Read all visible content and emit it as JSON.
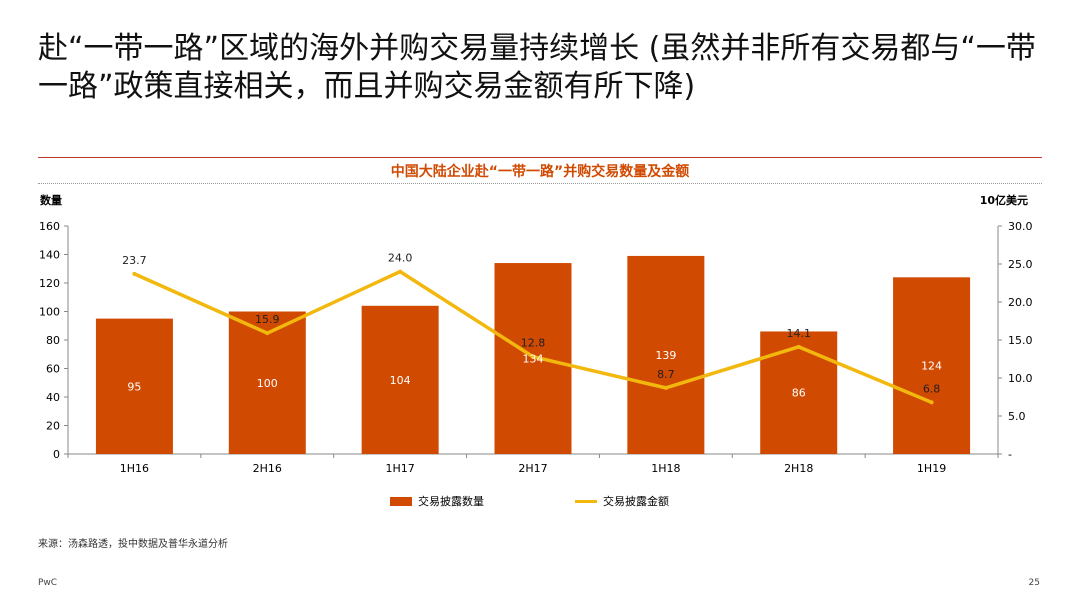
{
  "slide": {
    "title": "赴“一带一路”区域的海外并购交易量持续增长 (虽然并非所有交易都与“一带一路”政策直接相关，而且并购交易金额有所下降)",
    "source": "来源：汤森路透，投中数据及普华永道分析",
    "footer_left": "PwC",
    "page_number": "25"
  },
  "chart_data": {
    "type": "bar",
    "title": "中国大陆企业赴“一带一路”并购交易数量及金额",
    "categories": [
      "1H16",
      "2H16",
      "1H17",
      "2H17",
      "1H18",
      "2H18",
      "1H19"
    ],
    "series": [
      {
        "name": "交易披露数量",
        "type": "bar",
        "axis": "left",
        "values": [
          95,
          100,
          104,
          134,
          139,
          86,
          124
        ],
        "color": "#d04a02"
      },
      {
        "name": "交易披露金额",
        "type": "line",
        "axis": "right",
        "values": [
          23.7,
          15.9,
          24.0,
          12.8,
          8.7,
          14.1,
          6.8
        ],
        "color": "#f2b80d"
      }
    ],
    "ylabel_left": "数量",
    "ylabel_right": "10亿美元",
    "ylim_left": [
      0,
      160
    ],
    "ylim_right": [
      0,
      30
    ],
    "yticks_left": [
      "0",
      "20",
      "40",
      "60",
      "80",
      "100",
      "120",
      "140",
      "160"
    ],
    "yticks_right": [
      "-",
      "5.0",
      "10.0",
      "15.0",
      "20.0",
      "25.0",
      "30.0"
    ],
    "grid": false,
    "legend_position": "bottom"
  }
}
